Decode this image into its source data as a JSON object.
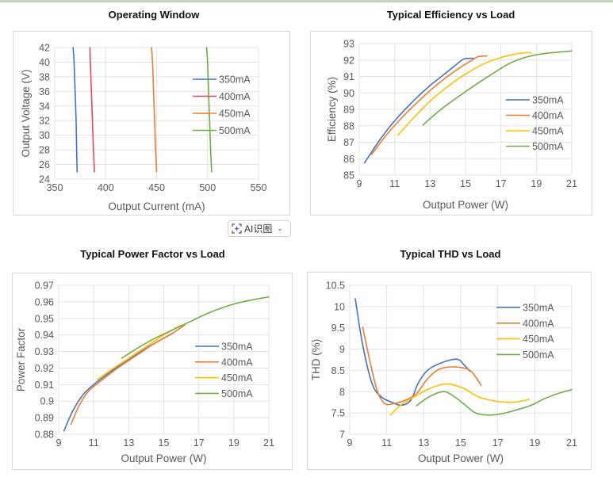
{
  "ai_button": {
    "label": "AI识图",
    "icon": "ai-scan-icon",
    "chevron": "chevron-down-icon"
  },
  "colors": {
    "blue": "#4472c4",
    "red": "#e8465c",
    "orange": "#ed7d31",
    "yellow": "#ffc000",
    "green": "#70ad47",
    "grid": "#e3e3e3",
    "frame": "#d9d9d9"
  },
  "chart_data": [
    {
      "id": "operating-window",
      "type": "line",
      "title": "Operating Window",
      "xlabel": "Output Current (mA)",
      "ylabel": "Output Voltage (V)",
      "xlim": [
        350,
        550
      ],
      "ylim": [
        24,
        42
      ],
      "xticks": [
        "350",
        "400",
        "450",
        "500",
        "550"
      ],
      "yticks": [
        "24",
        "26",
        "28",
        "30",
        "32",
        "34",
        "36",
        "38",
        "40",
        "42"
      ],
      "grid": true,
      "legend": "right",
      "series": [
        {
          "name": "350mA",
          "color": "#4472c4",
          "points": [
            [
              368,
              42
            ],
            [
              369,
              40
            ],
            [
              370,
              36
            ],
            [
              371,
              32
            ],
            [
              371.5,
              28
            ],
            [
              372,
              25
            ]
          ]
        },
        {
          "name": "400mA",
          "color": "#e8465c",
          "points": [
            [
              384.5,
              42
            ],
            [
              385,
              40
            ],
            [
              386,
              36
            ],
            [
              387,
              32
            ],
            [
              388,
              28
            ],
            [
              389,
              25
            ]
          ]
        },
        {
          "name": "450mA",
          "color": "#ed7d31",
          "points": [
            [
              445,
              42
            ],
            [
              446,
              40
            ],
            [
              447,
              36
            ],
            [
              448,
              32
            ],
            [
              449,
              28
            ],
            [
              450,
              25
            ]
          ]
        },
        {
          "name": "500mA",
          "color": "#70ad47",
          "points": [
            [
              499,
              42
            ],
            [
              500,
              40
            ],
            [
              501,
              36
            ],
            [
              502,
              32
            ],
            [
              503,
              28
            ],
            [
              504,
              25
            ]
          ]
        }
      ]
    },
    {
      "id": "efficiency",
      "type": "line",
      "title": "Typical Efficiency vs Load",
      "xlabel": "Output Power (W)",
      "ylabel": "Efficiency (%)",
      "xlim": [
        9,
        21
      ],
      "ylim": [
        85,
        93
      ],
      "xticks": [
        "9",
        "11",
        "13",
        "15",
        "17",
        "19",
        "21"
      ],
      "yticks": [
        "85",
        "86",
        "87",
        "88",
        "89",
        "90",
        "91",
        "92",
        "93"
      ],
      "grid": true,
      "legend": "center-right",
      "series": [
        {
          "name": "350mA",
          "color": "#4472c4",
          "points": [
            [
              9.3,
              85.75
            ],
            [
              10.2,
              87.2
            ],
            [
              11,
              88.3
            ],
            [
              12,
              89.45
            ],
            [
              13,
              90.45
            ],
            [
              14,
              91.3
            ],
            [
              14.8,
              92.0
            ],
            [
              15.1,
              92.1
            ],
            [
              15.5,
              92.1
            ]
          ]
        },
        {
          "name": "400mA",
          "color": "#ed7d31",
          "points": [
            [
              9.7,
              86.25
            ],
            [
              10.5,
              87.4
            ],
            [
              11.5,
              88.6
            ],
            [
              12.5,
              89.65
            ],
            [
              13.5,
              90.6
            ],
            [
              14.5,
              91.4
            ],
            [
              15.3,
              91.95
            ],
            [
              15.7,
              92.2
            ],
            [
              16.2,
              92.25
            ]
          ]
        },
        {
          "name": "450mA",
          "color": "#ffc000",
          "points": [
            [
              11.2,
              87.45
            ],
            [
              12,
              88.4
            ],
            [
              13,
              89.5
            ],
            [
              14,
              90.4
            ],
            [
              15,
              91.15
            ],
            [
              16,
              91.75
            ],
            [
              17,
              92.15
            ],
            [
              18,
              92.4
            ],
            [
              18.7,
              92.45
            ]
          ]
        },
        {
          "name": "500mA",
          "color": "#70ad47",
          "points": [
            [
              12.6,
              88.05
            ],
            [
              13.5,
              88.9
            ],
            [
              14.5,
              89.7
            ],
            [
              15.5,
              90.45
            ],
            [
              16.5,
              91.15
            ],
            [
              17.5,
              91.8
            ],
            [
              18.5,
              92.2
            ],
            [
              19.5,
              92.4
            ],
            [
              21,
              92.55
            ]
          ]
        }
      ]
    },
    {
      "id": "power-factor",
      "type": "line",
      "title": "Typical Power Factor vs Load",
      "xlabel": "Output Power (W)",
      "ylabel": "Power Factor",
      "xlim": [
        9,
        21
      ],
      "ylim": [
        0.88,
        0.97
      ],
      "xticks": [
        "9",
        "11",
        "13",
        "15",
        "17",
        "19",
        "21"
      ],
      "yticks": [
        "0.88",
        "0.89",
        "0.9",
        "0.91",
        "0.92",
        "0.93",
        "0.94",
        "0.95",
        "0.96",
        "0.97"
      ],
      "grid": true,
      "legend": "center-right",
      "series": [
        {
          "name": "350mA",
          "color": "#4472c4",
          "points": [
            [
              9.3,
              0.882
            ],
            [
              9.8,
              0.894
            ],
            [
              10.4,
              0.904
            ],
            [
              11,
              0.91
            ],
            [
              12,
              0.918
            ],
            [
              13,
              0.925
            ],
            [
              14,
              0.932
            ],
            [
              15,
              0.938
            ],
            [
              15.5,
              0.941
            ]
          ]
        },
        {
          "name": "400mA",
          "color": "#ed7d31",
          "points": [
            [
              9.7,
              0.886
            ],
            [
              10.2,
              0.898
            ],
            [
              10.7,
              0.906
            ],
            [
              11.5,
              0.913
            ],
            [
              12.5,
              0.921
            ],
            [
              13.5,
              0.928
            ],
            [
              14.5,
              0.935
            ],
            [
              15.5,
              0.941
            ],
            [
              16.2,
              0.946
            ]
          ]
        },
        {
          "name": "450mA",
          "color": "#ffc000",
          "points": [
            [
              11.2,
              0.913
            ],
            [
              12,
              0.919
            ],
            [
              13,
              0.926
            ],
            [
              14,
              0.933
            ],
            [
              15,
              0.94
            ],
            [
              16,
              0.946
            ]
          ]
        },
        {
          "name": "500mA",
          "color": "#70ad47",
          "points": [
            [
              12.6,
              0.926
            ],
            [
              13.5,
              0.932
            ],
            [
              14.5,
              0.938
            ],
            [
              15.5,
              0.943
            ],
            [
              16.5,
              0.948
            ],
            [
              17.5,
              0.953
            ],
            [
              18.5,
              0.957
            ],
            [
              19.5,
              0.96
            ],
            [
              21,
              0.963
            ]
          ]
        }
      ]
    },
    {
      "id": "thd",
      "type": "line",
      "title": "Typical THD vs Load",
      "xlabel": "Output Power (W)",
      "ylabel": "THD (%)",
      "xlim": [
        9,
        21
      ],
      "ylim": [
        7,
        10.5
      ],
      "xticks": [
        "9",
        "11",
        "13",
        "15",
        "17",
        "19",
        "21"
      ],
      "yticks": [
        "7",
        "7.5",
        "8",
        "8.5",
        "9",
        "9.5",
        "10",
        "10.5"
      ],
      "grid": true,
      "legend": "top-right",
      "series": [
        {
          "name": "350mA",
          "color": "#4472c4",
          "points": [
            [
              9.3,
              10.18
            ],
            [
              9.7,
              9.1
            ],
            [
              10.2,
              8.2
            ],
            [
              10.7,
              7.88
            ],
            [
              11.3,
              7.75
            ],
            [
              11.8,
              7.68
            ],
            [
              12.3,
              7.8
            ],
            [
              12.7,
              8.2
            ],
            [
              13.2,
              8.5
            ],
            [
              13.8,
              8.65
            ],
            [
              14.5,
              8.75
            ],
            [
              14.9,
              8.75
            ],
            [
              15.2,
              8.62
            ],
            [
              15.5,
              8.48
            ]
          ]
        },
        {
          "name": "400mA",
          "color": "#ed7d31",
          "points": [
            [
              9.7,
              9.52
            ],
            [
              10.1,
              8.7
            ],
            [
              10.5,
              8.0
            ],
            [
              10.9,
              7.72
            ],
            [
              11.4,
              7.72
            ],
            [
              12,
              7.8
            ],
            [
              12.6,
              7.95
            ],
            [
              13.2,
              8.3
            ],
            [
              13.8,
              8.52
            ],
            [
              14.4,
              8.58
            ],
            [
              15,
              8.57
            ],
            [
              15.5,
              8.5
            ],
            [
              15.8,
              8.35
            ],
            [
              16.1,
              8.15
            ]
          ]
        },
        {
          "name": "450mA",
          "color": "#ffc000",
          "points": [
            [
              11.2,
              7.45
            ],
            [
              11.8,
              7.7
            ],
            [
              12.5,
              7.88
            ],
            [
              13.2,
              8.05
            ],
            [
              14,
              8.17
            ],
            [
              14.5,
              8.17
            ],
            [
              15.2,
              8.07
            ],
            [
              16,
              7.87
            ],
            [
              17,
              7.77
            ],
            [
              17.8,
              7.75
            ],
            [
              18.3,
              7.78
            ],
            [
              18.7,
              7.82
            ]
          ]
        },
        {
          "name": "500mA",
          "color": "#70ad47",
          "points": [
            [
              12.6,
              7.67
            ],
            [
              13.3,
              7.88
            ],
            [
              14,
              8.0
            ],
            [
              14.5,
              7.93
            ],
            [
              15.2,
              7.7
            ],
            [
              15.8,
              7.5
            ],
            [
              16.5,
              7.45
            ],
            [
              17.2,
              7.48
            ],
            [
              18,
              7.57
            ],
            [
              18.8,
              7.68
            ],
            [
              19.5,
              7.83
            ],
            [
              20.2,
              7.95
            ],
            [
              21,
              8.05
            ]
          ]
        }
      ]
    }
  ]
}
